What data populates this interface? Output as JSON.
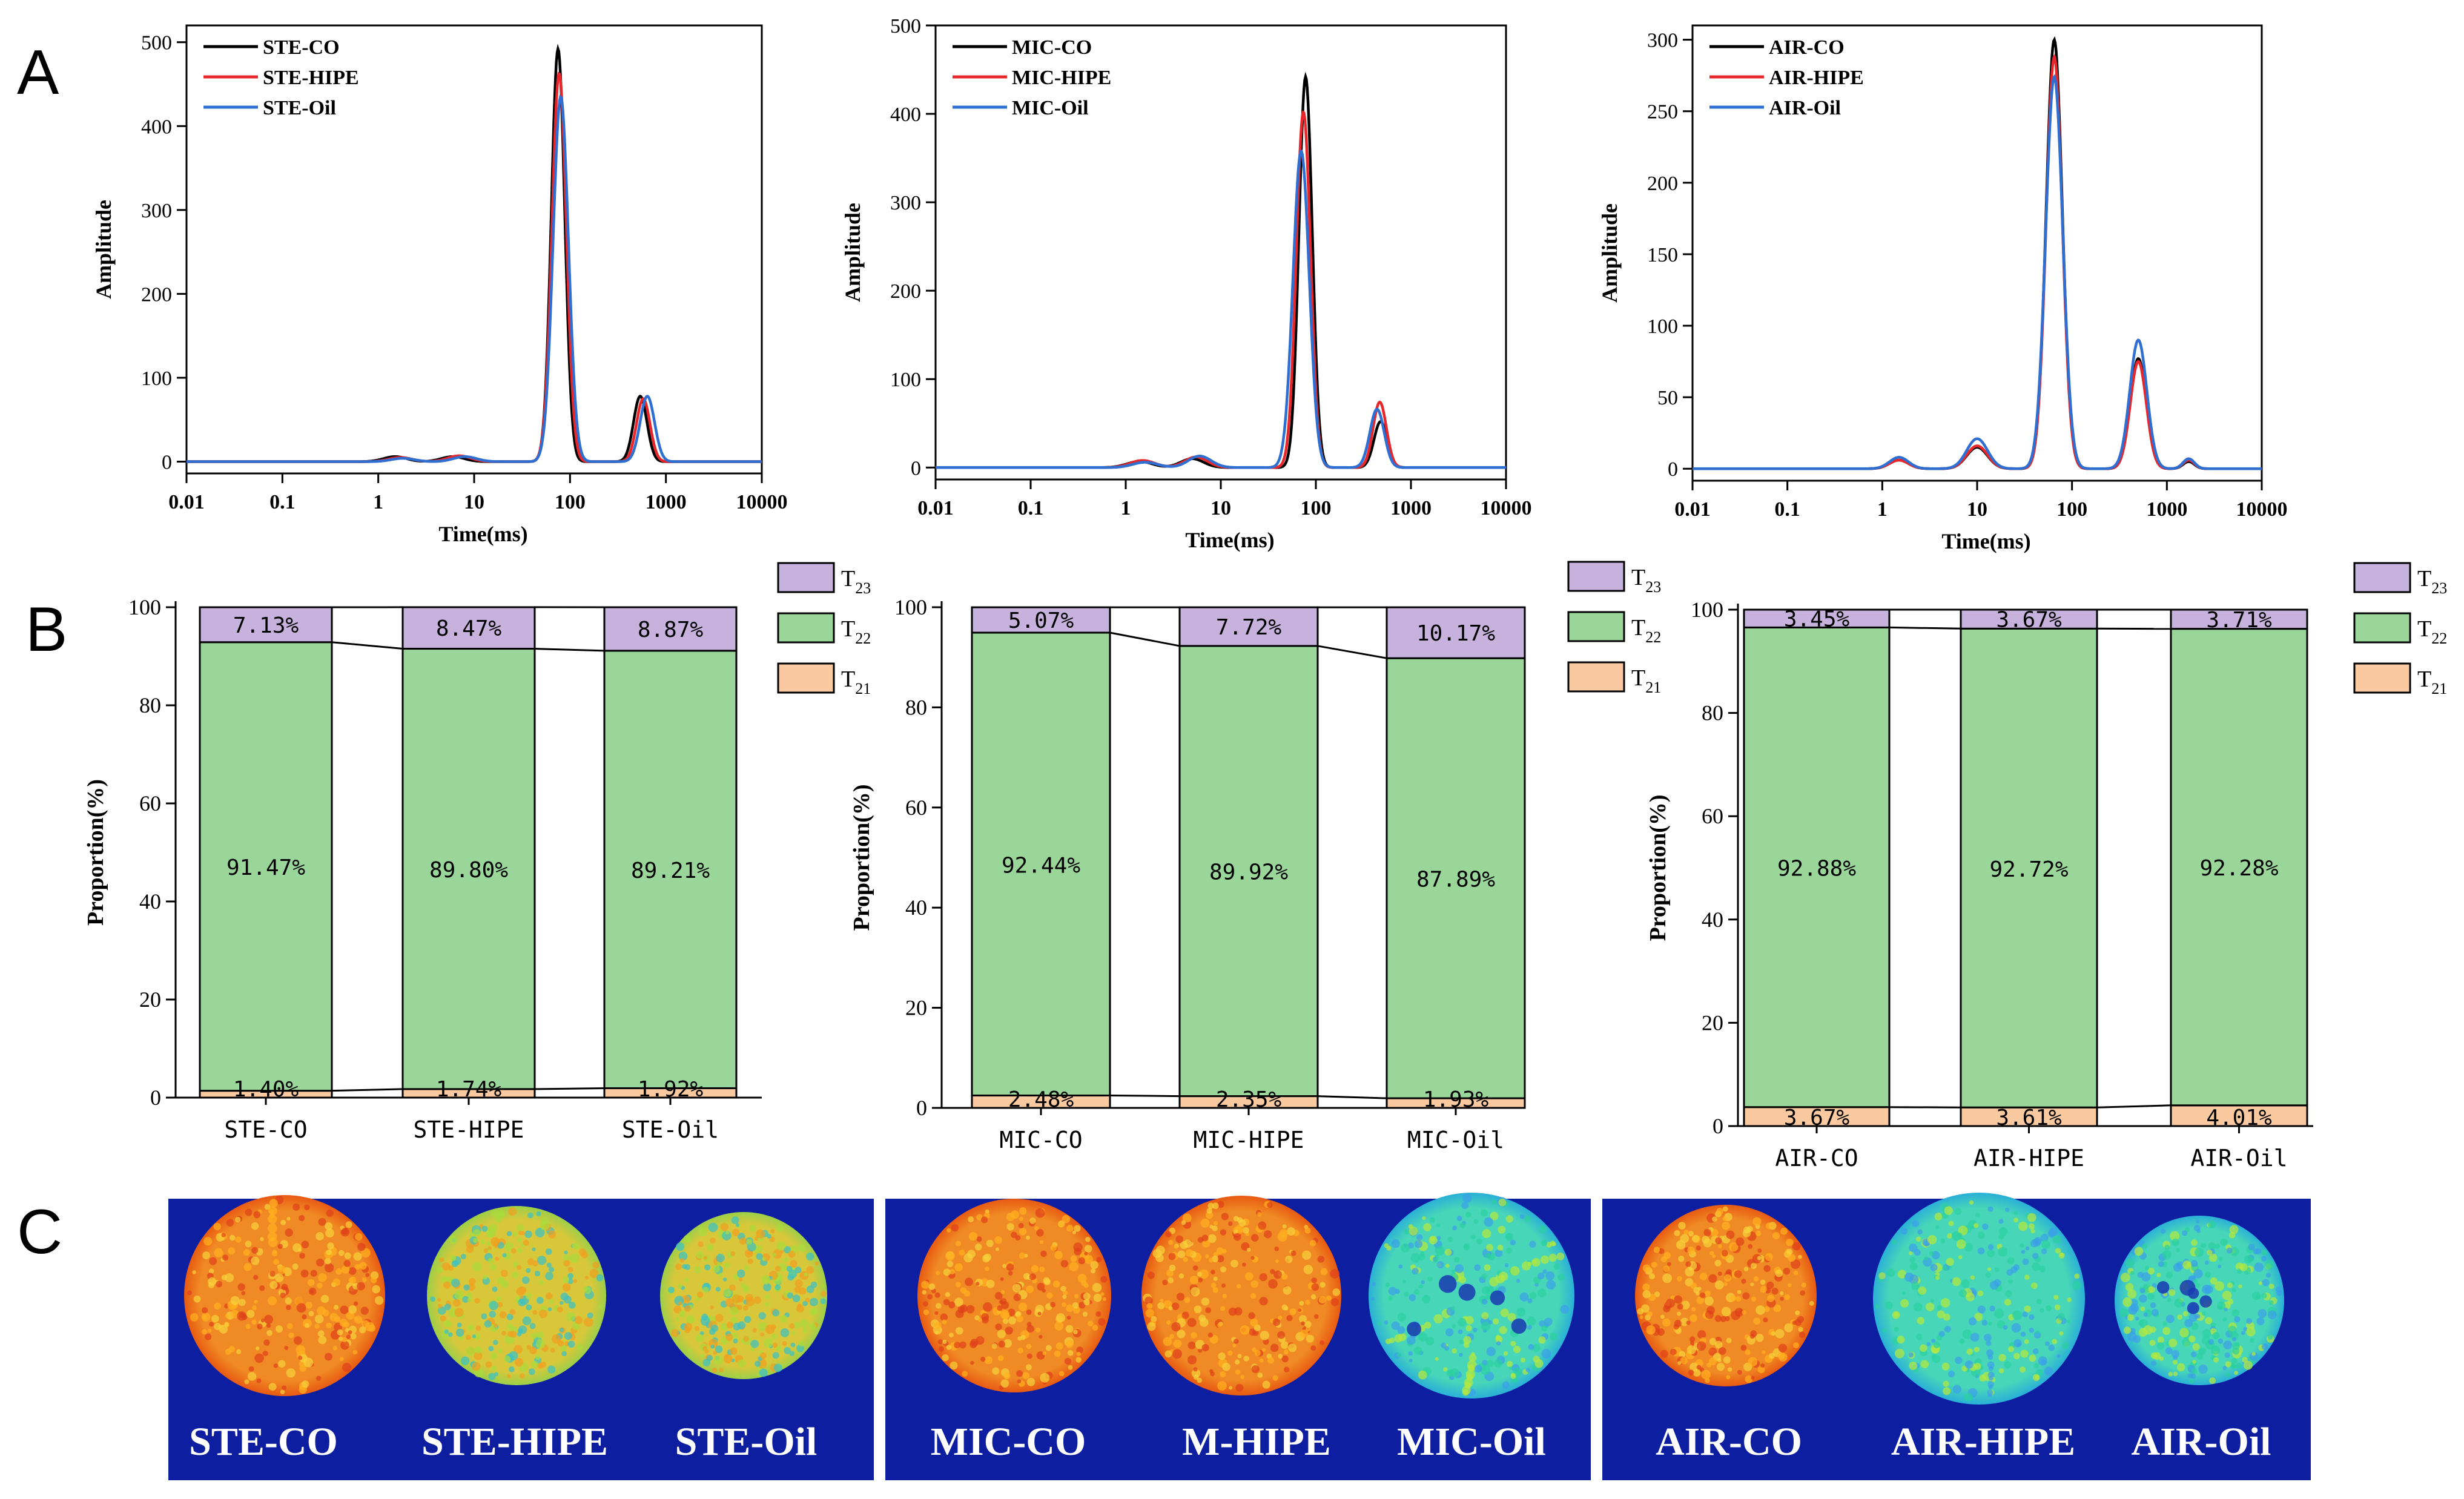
{
  "panel_labels": {
    "a": "A",
    "b": "B",
    "c": "C"
  },
  "colors": {
    "co": "#000000",
    "hipe": "#e8272c",
    "oil": "#2f6fd1",
    "t21": "#fbc9a0",
    "t22": "#9ad69a",
    "t23": "#c6b2dc",
    "mri_bg": "#0d1fa0",
    "mri_text": "#ffffff"
  },
  "chart_data": [
    {
      "type": "line",
      "panel": "A",
      "xscale": "log",
      "xlim": [
        0.01,
        10000
      ],
      "ylim": [
        0,
        520
      ],
      "yticks": [
        "0",
        "100",
        "200",
        "300",
        "400",
        "500"
      ],
      "xticks": [
        "0.01",
        "0.1",
        "1",
        "10",
        "100",
        "1000",
        "10000"
      ],
      "xlabel": "Time(ms)",
      "ylabel": "Amplitude",
      "legend": [
        "STE-CO",
        "STE-HIPE",
        "STE-Oil"
      ],
      "series": [
        {
          "name": "STE-CO",
          "peaks": [
            [
              1.5,
              6,
              0.12
            ],
            [
              6,
              6,
              0.12
            ],
            [
              75,
              492,
              0.07
            ],
            [
              540,
              78,
              0.07
            ]
          ]
        },
        {
          "name": "STE-HIPE",
          "peaks": [
            [
              1.7,
              5,
              0.12
            ],
            [
              7,
              7,
              0.12
            ],
            [
              77,
              463,
              0.075
            ],
            [
              580,
              75,
              0.07
            ]
          ]
        },
        {
          "name": "STE-Oil",
          "peaks": [
            [
              1.8,
              4,
              0.12
            ],
            [
              8,
              6,
              0.12
            ],
            [
              80,
              435,
              0.08
            ],
            [
              640,
              78,
              0.075
            ]
          ]
        }
      ]
    },
    {
      "type": "line",
      "panel": "A",
      "xscale": "log",
      "xlim": [
        0.01,
        10000
      ],
      "ylim": [
        0,
        500
      ],
      "yticks": [
        "0",
        "100",
        "200",
        "300",
        "400",
        "500"
      ],
      "xticks": [
        "0.01",
        "0.1",
        "1",
        "10",
        "100",
        "1000",
        "10000"
      ],
      "xlabel": "Time(ms)",
      "ylabel": "Amplitude",
      "legend": [
        "MIC-CO",
        "MIC-HIPE",
        "MIC-Oil"
      ],
      "series": [
        {
          "name": "MIC-CO",
          "peaks": [
            [
              1.4,
              7,
              0.13
            ],
            [
              5,
              10,
              0.12
            ],
            [
              78,
              442,
              0.07
            ],
            [
              480,
              52,
              0.07
            ]
          ]
        },
        {
          "name": "MIC-HIPE",
          "peaks": [
            [
              1.5,
              8,
              0.13
            ],
            [
              5.5,
              12,
              0.12
            ],
            [
              74,
              402,
              0.075
            ],
            [
              470,
              74,
              0.07
            ]
          ]
        },
        {
          "name": "MIC-Oil",
          "peaks": [
            [
              1.6,
              6,
              0.13
            ],
            [
              6,
              13,
              0.12
            ],
            [
              70,
              358,
              0.085
            ],
            [
              440,
              66,
              0.075
            ]
          ]
        }
      ]
    },
    {
      "type": "line",
      "panel": "A",
      "xscale": "log",
      "xlim": [
        0.01,
        10000
      ],
      "ylim": [
        0,
        310
      ],
      "yticks": [
        "0",
        "50",
        "100",
        "150",
        "200",
        "250",
        "300"
      ],
      "xticks": [
        "0.01",
        "0.1",
        "1",
        "10",
        "100",
        "1000",
        "10000"
      ],
      "xlabel": "Time(ms)",
      "ylabel": "Amplitude",
      "legend": [
        "AIR-CO",
        "AIR-HIPE",
        "AIR-Oil"
      ],
      "series": [
        {
          "name": "AIR-CO",
          "peaks": [
            [
              1.5,
              6,
              0.1
            ],
            [
              10,
              15,
              0.11
            ],
            [
              65,
              300,
              0.085
            ],
            [
              500,
              77,
              0.085
            ],
            [
              1700,
              5,
              0.06
            ]
          ]
        },
        {
          "name": "AIR-HIPE",
          "peaks": [
            [
              1.5,
              6,
              0.1
            ],
            [
              10,
              16,
              0.11
            ],
            [
              65,
              288,
              0.085
            ],
            [
              500,
              75,
              0.085
            ],
            [
              1700,
              6,
              0.06
            ]
          ]
        },
        {
          "name": "AIR-Oil",
          "peaks": [
            [
              1.5,
              8,
              0.1
            ],
            [
              10,
              21,
              0.11
            ],
            [
              65,
              274,
              0.09
            ],
            [
              500,
              90,
              0.09
            ],
            [
              1700,
              7,
              0.06
            ]
          ]
        }
      ]
    },
    {
      "type": "bar",
      "stacked": true,
      "panel": "B",
      "ylim": [
        0,
        100
      ],
      "yticks": [
        "0",
        "20",
        "40",
        "60",
        "80",
        "100"
      ],
      "ylabel": "Proportion(%)",
      "categories": [
        "STE-CO",
        "STE-HIPE",
        "STE-Oil"
      ],
      "legend": [
        {
          "base": "T",
          "sub": "23"
        },
        {
          "base": "T",
          "sub": "22"
        },
        {
          "base": "T",
          "sub": "21"
        }
      ],
      "series": [
        {
          "name": "T21",
          "values": [
            1.4,
            1.74,
            1.92
          ],
          "labels": [
            "1.40%",
            "1.74%",
            "1.92%"
          ]
        },
        {
          "name": "T22",
          "values": [
            91.47,
            89.8,
            89.21
          ],
          "labels": [
            "91.47%",
            "89.80%",
            "89.21%"
          ]
        },
        {
          "name": "T23",
          "values": [
            7.13,
            8.47,
            8.87
          ],
          "labels": [
            "7.13%",
            "8.47%",
            "8.87%"
          ]
        }
      ]
    },
    {
      "type": "bar",
      "stacked": true,
      "panel": "B",
      "ylim": [
        0,
        100
      ],
      "yticks": [
        "0",
        "20",
        "40",
        "60",
        "80",
        "100"
      ],
      "ylabel": "Proportion(%)",
      "categories": [
        "MIC-CO",
        "MIC-HIPE",
        "MIC-Oil"
      ],
      "legend": [
        {
          "base": "T",
          "sub": "23"
        },
        {
          "base": "T",
          "sub": "22"
        },
        {
          "base": "T",
          "sub": "21"
        }
      ],
      "series": [
        {
          "name": "T21",
          "values": [
            2.48,
            2.35,
            1.93
          ],
          "labels": [
            "2.48%",
            "2.35%",
            "1.93%"
          ]
        },
        {
          "name": "T22",
          "values": [
            92.44,
            89.92,
            87.89
          ],
          "labels": [
            "92.44%",
            "89.92%",
            "87.89%"
          ]
        },
        {
          "name": "T23",
          "values": [
            5.07,
            7.72,
            10.17
          ],
          "labels": [
            "5.07%",
            "7.72%",
            "10.17%"
          ]
        }
      ]
    },
    {
      "type": "bar",
      "stacked": true,
      "panel": "B",
      "ylim": [
        0,
        100
      ],
      "yticks": [
        "0",
        "20",
        "40",
        "60",
        "80",
        "100"
      ],
      "ylabel": "Proportion(%)",
      "categories": [
        "AIR-CO",
        "AIR-HIPE",
        "AIR-Oil"
      ],
      "legend": [
        {
          "base": "T",
          "sub": "23"
        },
        {
          "base": "T",
          "sub": "22"
        },
        {
          "base": "T",
          "sub": "21"
        }
      ],
      "series": [
        {
          "name": "T21",
          "values": [
            3.67,
            3.61,
            4.01
          ],
          "labels": [
            "3.67%",
            "3.61%",
            "4.01%"
          ]
        },
        {
          "name": "T22",
          "values": [
            92.88,
            92.72,
            92.28
          ],
          "labels": [
            "92.88%",
            "92.72%",
            "92.28%"
          ]
        },
        {
          "name": "T23",
          "values": [
            3.45,
            3.67,
            3.71
          ],
          "labels": [
            "3.45%",
            "3.67%",
            "3.71%"
          ]
        }
      ]
    }
  ],
  "mri_panels": [
    {
      "labels": [
        "STE-CO",
        "STE-HIPE",
        "STE-Oil"
      ],
      "wetness": [
        0.85,
        0.55,
        0.35
      ]
    },
    {
      "labels": [
        "MIC-CO",
        "M-HIPE",
        "MIC-Oil"
      ],
      "wetness": [
        0.8,
        0.75,
        0.15
      ]
    },
    {
      "labels": [
        "AIR-CO",
        "AIR-HIPE",
        "AIR-Oil"
      ],
      "wetness": [
        0.7,
        0.3,
        0.12
      ]
    }
  ]
}
